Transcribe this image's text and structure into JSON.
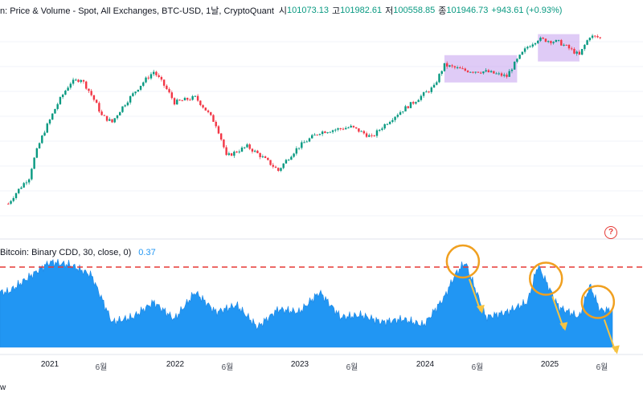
{
  "header": {
    "title": "n: Price & Volume - Spot, All Exchanges, BTC-USD, 1날, CryptoQuant",
    "open_label": "시",
    "open": "101073.13",
    "high_label": "고",
    "high": "101982.61",
    "low_label": "저",
    "low": "100558.85",
    "close_label": "종",
    "close": "101946.73",
    "change": "+943.61 (+0.93%)"
  },
  "indicator": {
    "name": "Bitcoin: Binary CDD, 30, close, 0)",
    "value": "0.37"
  },
  "x_axis_labels": [
    "2021",
    "6월",
    "2022",
    "6월",
    "2023",
    "6월",
    "2024",
    "6월",
    "2025",
    "6월"
  ],
  "watermark": "w",
  "help_icon": "?",
  "colors": {
    "up": "#089981",
    "down": "#f23645",
    "area": "#2196f3",
    "threshold": "#e53935",
    "highlight": "#c9a8f0",
    "annotation": "#f0a020",
    "arrow": "#f6c342"
  },
  "chart_data": [
    {
      "type": "candlestick",
      "title": "Price & Volume - Spot, All Exchanges, BTC-USD",
      "x": [
        "2020-09",
        "2020-11",
        "2021-01",
        "2021-03",
        "2021-04",
        "2021-06",
        "2021-07",
        "2021-09",
        "2021-11",
        "2022-01",
        "2022-03",
        "2022-05",
        "2022-06",
        "2022-08",
        "2022-11",
        "2023-01",
        "2023-03",
        "2023-06",
        "2023-08",
        "2023-10",
        "2023-12",
        "2024-02",
        "2024-03",
        "2024-05",
        "2024-07",
        "2024-09",
        "2024-11",
        "2024-12",
        "2025-02",
        "2025-04",
        "2025-05",
        "2025-06"
      ],
      "close": [
        10500,
        15000,
        33000,
        55000,
        58000,
        35000,
        32000,
        47000,
        64000,
        42000,
        45000,
        31000,
        20000,
        23000,
        16500,
        23000,
        28000,
        30000,
        26000,
        34000,
        42000,
        52000,
        70000,
        65000,
        64000,
        60000,
        90000,
        100000,
        96000,
        80000,
        104000,
        101946.73
      ],
      "highlights": [
        {
          "label": "range-1",
          "x": [
            "2024-03",
            "2024-10"
          ]
        },
        {
          "label": "range-2",
          "x": [
            "2024-12",
            "2025-04"
          ]
        }
      ]
    },
    {
      "type": "area",
      "title": "Bitcoin: Binary CDD, 30, close, 0",
      "x": [
        "2020-09",
        "2020-11",
        "2021-01",
        "2021-03",
        "2021-05",
        "2021-07",
        "2021-09",
        "2021-11",
        "2022-01",
        "2022-03",
        "2022-05",
        "2022-07",
        "2022-09",
        "2022-11",
        "2023-01",
        "2023-03",
        "2023-05",
        "2023-07",
        "2023-09",
        "2023-11",
        "2024-01",
        "2024-03",
        "2024-04",
        "2024-05",
        "2024-07",
        "2024-09",
        "2024-11",
        "2024-12",
        "2025-02",
        "2025-04",
        "2025-05",
        "2025-06"
      ],
      "values": [
        0.55,
        0.7,
        0.85,
        0.82,
        0.72,
        0.25,
        0.3,
        0.45,
        0.28,
        0.55,
        0.35,
        0.42,
        0.2,
        0.38,
        0.35,
        0.55,
        0.3,
        0.32,
        0.25,
        0.28,
        0.22,
        0.5,
        0.72,
        0.85,
        0.3,
        0.35,
        0.45,
        0.82,
        0.4,
        0.3,
        0.62,
        0.37
      ],
      "threshold": 0.8,
      "annotations": [
        "circle-2024-04",
        "circle-2024-12",
        "circle-2025-05"
      ]
    }
  ]
}
